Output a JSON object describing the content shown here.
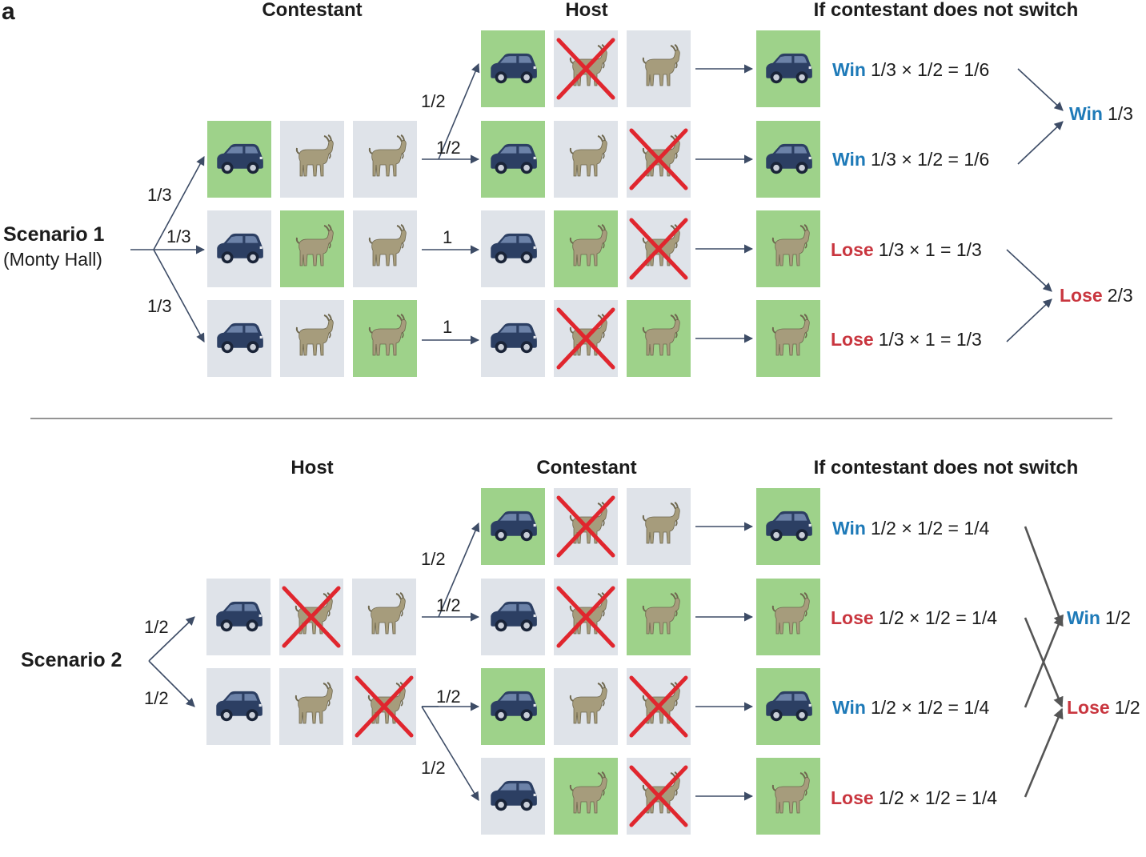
{
  "panel_label": "a",
  "colors": {
    "win": "#1e7ab8",
    "lose": "#c9363f",
    "door": "#dfe3e9",
    "prize_door": "#9ed28a",
    "car": "#2c3f63",
    "goat": "#a69c7c",
    "cross": "#e0262e"
  },
  "scenario1": {
    "title": "Scenario 1",
    "subtitle": "(Monty Hall)",
    "header_first": "Contestant",
    "header_second": "Host",
    "header_outcome": "If contestant does not switch",
    "first_probs": [
      "1/3",
      "1/3",
      "1/3"
    ],
    "branch_probs": [
      "1/2",
      "1/2",
      "1",
      "1"
    ],
    "outcomes": [
      {
        "label": "Win",
        "calc": "1/3 × 1/2 = 1/6"
      },
      {
        "label": "Win",
        "calc": "1/3 × 1/2 = 1/6"
      },
      {
        "label": "Lose",
        "calc": "1/3 × 1 = 1/3"
      },
      {
        "label": "Lose",
        "calc": "1/3 × 1 = 1/3"
      }
    ],
    "totals": [
      {
        "label": "Win",
        "value": "1/3"
      },
      {
        "label": "Lose",
        "value": "2/3"
      }
    ]
  },
  "scenario2": {
    "title": "Scenario 2",
    "header_first": "Host",
    "header_second": "Contestant",
    "header_outcome": "If contestant does not switch",
    "first_probs": [
      "1/2",
      "1/2"
    ],
    "branch_probs": [
      "1/2",
      "1/2",
      "1/2",
      "1/2"
    ],
    "outcomes": [
      {
        "label": "Win",
        "calc": "1/2 × 1/2 = 1/4"
      },
      {
        "label": "Lose",
        "calc": "1/2 × 1/2 = 1/4"
      },
      {
        "label": "Win",
        "calc": "1/2 × 1/2 = 1/4"
      },
      {
        "label": "Lose",
        "calc": "1/2 × 1/2 = 1/4"
      }
    ],
    "totals": [
      {
        "label": "Win",
        "value": "1/2"
      },
      {
        "label": "Lose",
        "value": "1/2"
      }
    ]
  }
}
